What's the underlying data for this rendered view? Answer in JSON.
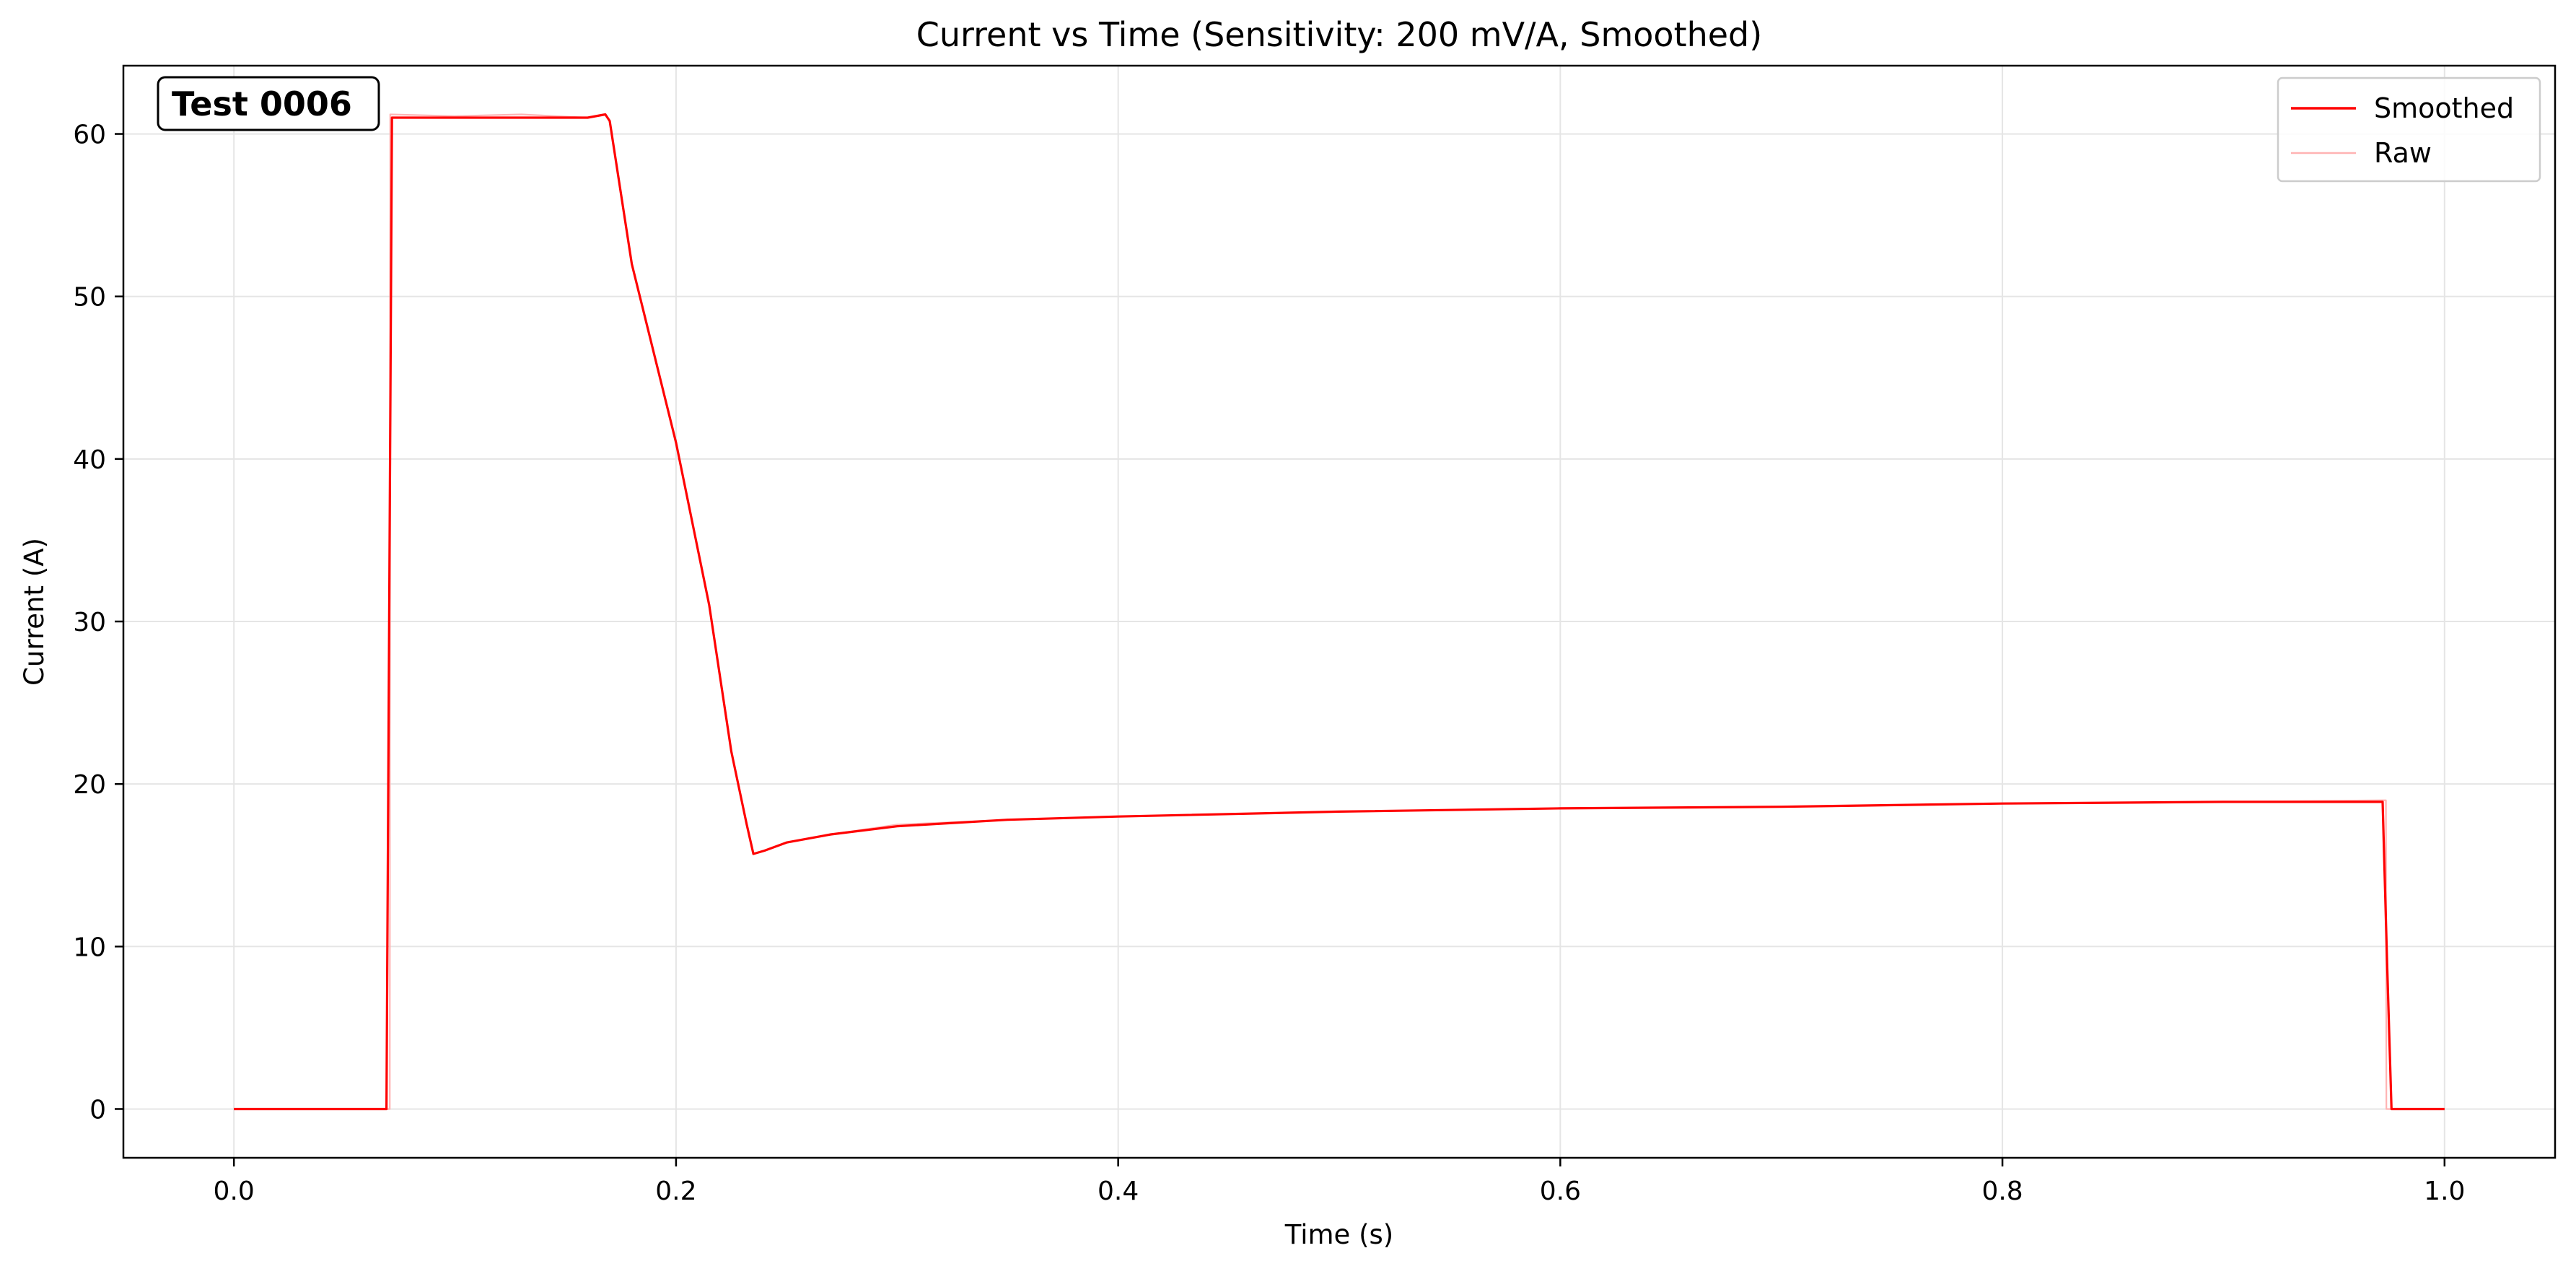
{
  "chart_data": {
    "type": "line",
    "title": "Current vs Time (Sensitivity: 200 mV/A, Smoothed)",
    "xlabel": "Time (s)",
    "ylabel": "Current (A)",
    "xlim": [
      -0.05,
      1.05
    ],
    "ylim": [
      -3,
      64.2
    ],
    "xticks": [
      0.0,
      0.2,
      0.4,
      0.6,
      0.8,
      1.0
    ],
    "xtick_labels": [
      "0.0",
      "0.2",
      "0.4",
      "0.6",
      "0.8",
      "1.0"
    ],
    "yticks": [
      0,
      10,
      20,
      30,
      40,
      50,
      60
    ],
    "ytick_labels": [
      "0",
      "10",
      "20",
      "30",
      "40",
      "50",
      "60"
    ],
    "grid": true,
    "legend_position": "top-right",
    "annotation": "Test 0006",
    "series": [
      {
        "name": "Smoothed",
        "color": "#ff0000",
        "x": [
          0.0,
          0.069,
          0.0715,
          0.075,
          0.1,
          0.13,
          0.16,
          0.168,
          0.17,
          0.18,
          0.2,
          0.215,
          0.225,
          0.232,
          0.235,
          0.24,
          0.25,
          0.27,
          0.3,
          0.35,
          0.4,
          0.5,
          0.6,
          0.7,
          0.8,
          0.9,
          0.972,
          0.974,
          0.976,
          1.0
        ],
        "y": [
          0,
          0,
          61.0,
          61.0,
          61.0,
          61.0,
          61.0,
          61.2,
          60.8,
          52.0,
          41.0,
          31.0,
          22.0,
          17.5,
          15.7,
          15.9,
          16.4,
          16.9,
          17.4,
          17.8,
          18.0,
          18.3,
          18.5,
          18.6,
          18.8,
          18.9,
          18.9,
          9.0,
          0,
          0
        ]
      },
      {
        "name": "Raw",
        "color": "#ffb3b3",
        "x": [
          0.0,
          0.0705,
          0.0707,
          0.1,
          0.13,
          0.16,
          0.168,
          0.17,
          0.18,
          0.2,
          0.215,
          0.225,
          0.232,
          0.235,
          0.24,
          0.25,
          0.27,
          0.3,
          0.35,
          0.4,
          0.5,
          0.6,
          0.7,
          0.8,
          0.9,
          0.9735,
          0.9737,
          1.0
        ],
        "y": [
          0,
          0,
          61.2,
          61.1,
          61.2,
          61.0,
          61.2,
          60.8,
          52.0,
          41.0,
          31.0,
          22.0,
          17.5,
          15.7,
          15.9,
          16.4,
          16.9,
          17.5,
          17.8,
          18.0,
          18.3,
          18.5,
          18.6,
          18.8,
          18.9,
          19.0,
          0,
          0
        ]
      }
    ]
  }
}
